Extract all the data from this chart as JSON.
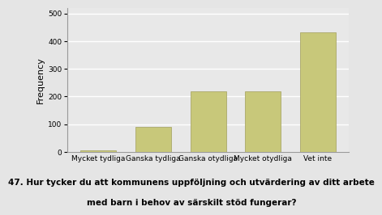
{
  "categories": [
    "Mycket tydliga",
    "Ganska tydliga",
    "Ganska otydliga",
    "Mycket otydliga",
    "Vet inte"
  ],
  "values": [
    7,
    90,
    220,
    218,
    432
  ],
  "bar_color": "#c8c87a",
  "bar_edge_color": "#aaa86a",
  "ylabel": "Frequency",
  "ylim": [
    0,
    520
  ],
  "yticks": [
    0,
    100,
    200,
    300,
    400,
    500
  ],
  "caption_line1": "47. Hur tycker du att kommunens uppföljning och utvärdering av ditt arbete",
  "caption_line2": "med barn i behov av särskilt stöd fungerar?",
  "background_color": "#e5e5e5",
  "plot_bg_color": "#e8e8e8",
  "ylabel_fontsize": 8,
  "tick_fontsize": 6.5,
  "caption_fontsize": 7.5,
  "bar_width": 0.65
}
